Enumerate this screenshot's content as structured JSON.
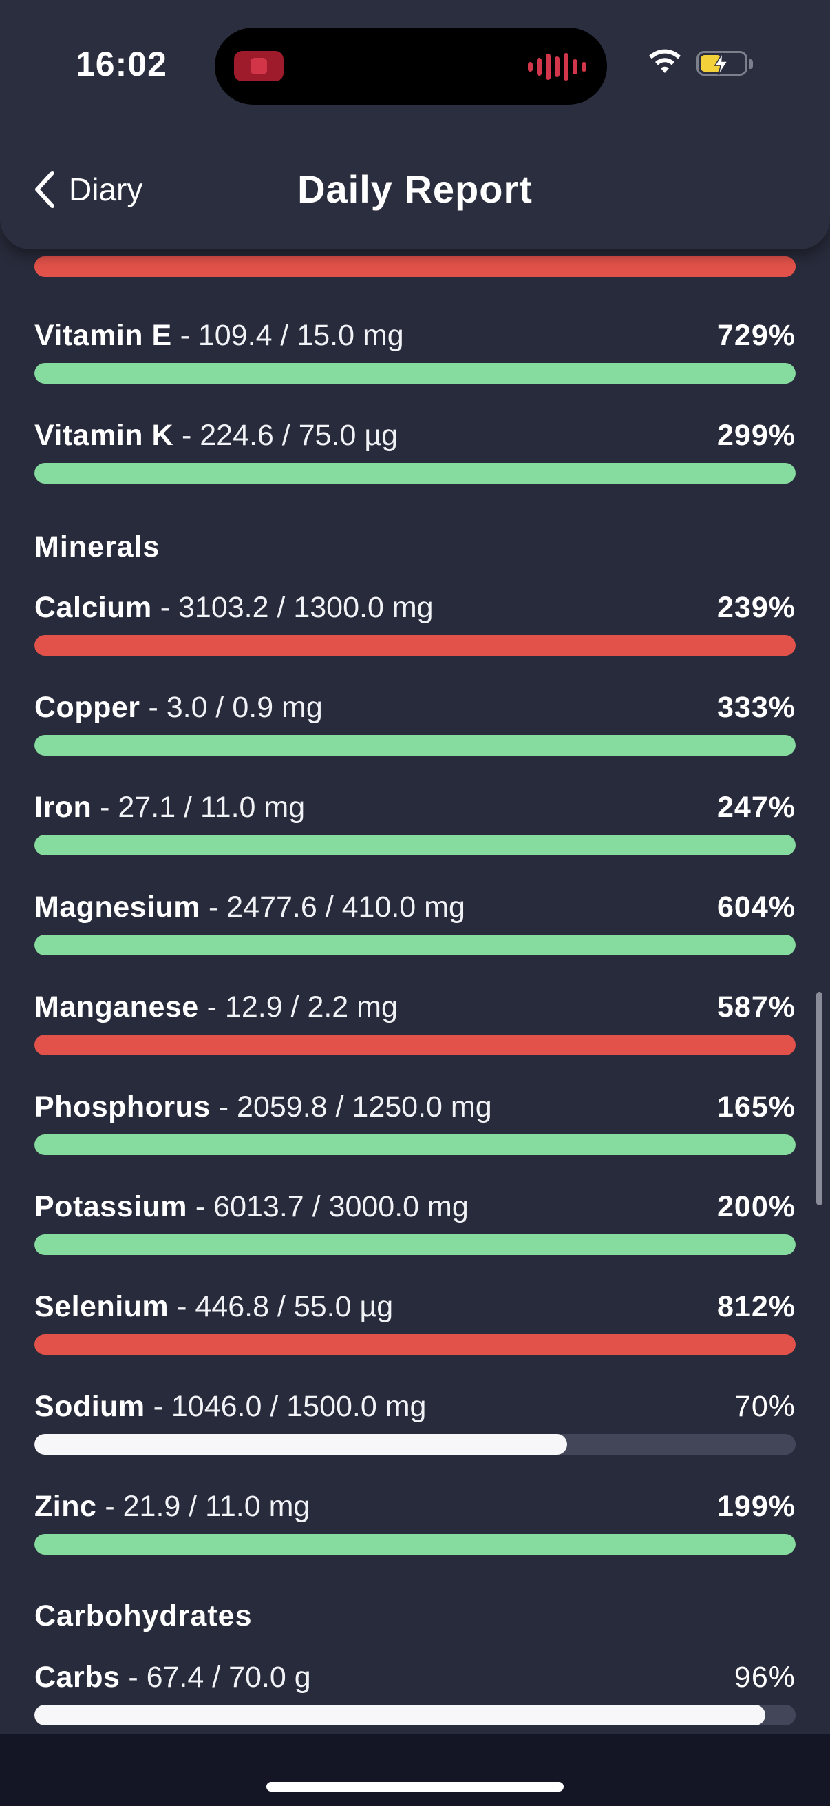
{
  "status": {
    "time": "16:02"
  },
  "header": {
    "back_label": "Diary",
    "title": "Daily Report"
  },
  "colors": {
    "over_limit": "#e2524a",
    "good": "#86dc9e",
    "in_progress": "#f7f7f9",
    "track": "#434658"
  },
  "top_partial": {
    "status": "over_limit"
  },
  "vitamin_rows": [
    {
      "name": "Vitamin E",
      "amount": " - 109.4 / 15.0 mg",
      "percent": "729%",
      "fraction": 1,
      "status": "good",
      "bold_percent": true
    },
    {
      "name": "Vitamin K",
      "amount": " - 224.6 / 75.0 µg",
      "percent": "299%",
      "fraction": 1,
      "status": "good",
      "bold_percent": true
    }
  ],
  "minerals": {
    "title": "Minerals",
    "rows": [
      {
        "name": "Calcium",
        "amount": " - 3103.2 / 1300.0 mg",
        "percent": "239%",
        "fraction": 1,
        "status": "over_limit",
        "bold_percent": true
      },
      {
        "name": "Copper",
        "amount": " - 3.0 / 0.9 mg",
        "percent": "333%",
        "fraction": 1,
        "status": "good",
        "bold_percent": true
      },
      {
        "name": "Iron",
        "amount": " - 27.1 / 11.0 mg",
        "percent": "247%",
        "fraction": 1,
        "status": "good",
        "bold_percent": true
      },
      {
        "name": "Magnesium",
        "amount": " - 2477.6 / 410.0 mg",
        "percent": "604%",
        "fraction": 1,
        "status": "good",
        "bold_percent": true
      },
      {
        "name": "Manganese",
        "amount": " - 12.9 / 2.2 mg",
        "percent": "587%",
        "fraction": 1,
        "status": "over_limit",
        "bold_percent": true
      },
      {
        "name": "Phosphorus",
        "amount": " - 2059.8 / 1250.0 mg",
        "percent": "165%",
        "fraction": 1,
        "status": "good",
        "bold_percent": true
      },
      {
        "name": "Potassium",
        "amount": " - 6013.7 / 3000.0 mg",
        "percent": "200%",
        "fraction": 1,
        "status": "good",
        "bold_percent": true
      },
      {
        "name": "Selenium",
        "amount": " - 446.8 / 55.0 µg",
        "percent": "812%",
        "fraction": 1,
        "status": "over_limit",
        "bold_percent": true
      },
      {
        "name": "Sodium",
        "amount": " - 1046.0 / 1500.0 mg",
        "percent": "70%",
        "fraction": 0.7,
        "status": "in_progress",
        "bold_percent": false
      },
      {
        "name": "Zinc",
        "amount": " - 21.9 / 11.0 mg",
        "percent": "199%",
        "fraction": 1,
        "status": "good",
        "bold_percent": true
      }
    ]
  },
  "carbohydrates": {
    "title": "Carbohydrates",
    "rows": [
      {
        "name": "Carbs",
        "amount": " - 67.4 / 70.0 g",
        "percent": "96%",
        "fraction": 0.96,
        "status": "in_progress",
        "bold_percent": false
      }
    ]
  }
}
